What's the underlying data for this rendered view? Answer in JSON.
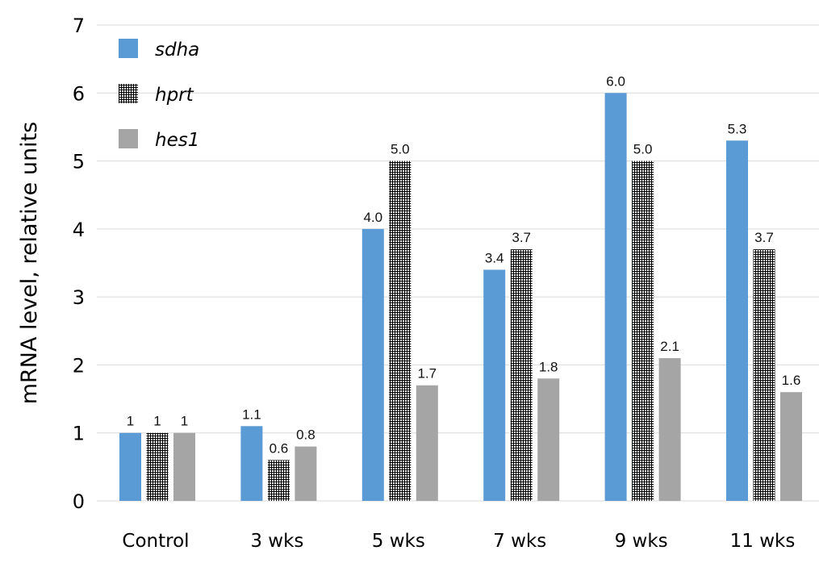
{
  "chart_data": {
    "type": "bar",
    "title": "",
    "xlabel": "",
    "ylabel": "mRNA level, relative units",
    "ylim": [
      0,
      7
    ],
    "yticks": [
      "0",
      "1",
      "2",
      "3",
      "4",
      "5",
      "6",
      "7"
    ],
    "grid": true,
    "legend_position": "top-left",
    "categories": [
      "Control",
      "3 wks",
      "5 wks",
      "7 wks",
      "9 wks",
      "11 wks"
    ],
    "series": [
      {
        "name": "sdha",
        "color": "#5b9bd5",
        "fill": "solid",
        "values": [
          1,
          1.1,
          4.0,
          3.4,
          6.0,
          5.3
        ],
        "labels": [
          "1",
          "1.1",
          "4.0",
          "3.4",
          "6.0",
          "5.3"
        ]
      },
      {
        "name": "hprt",
        "color": "#000000",
        "fill": "crosshatch",
        "values": [
          1,
          0.6,
          5.0,
          3.7,
          5.0,
          3.7
        ],
        "labels": [
          "1",
          "0.6",
          "5.0",
          "3.7",
          "5.0",
          "3.7"
        ]
      },
      {
        "name": "hes1",
        "color": "#a5a5a5",
        "fill": "solid",
        "values": [
          1,
          0.8,
          1.7,
          1.8,
          2.1,
          1.6
        ],
        "labels": [
          "1",
          "0.8",
          "1.7",
          "1.8",
          "2.1",
          "1.6"
        ]
      }
    ]
  }
}
